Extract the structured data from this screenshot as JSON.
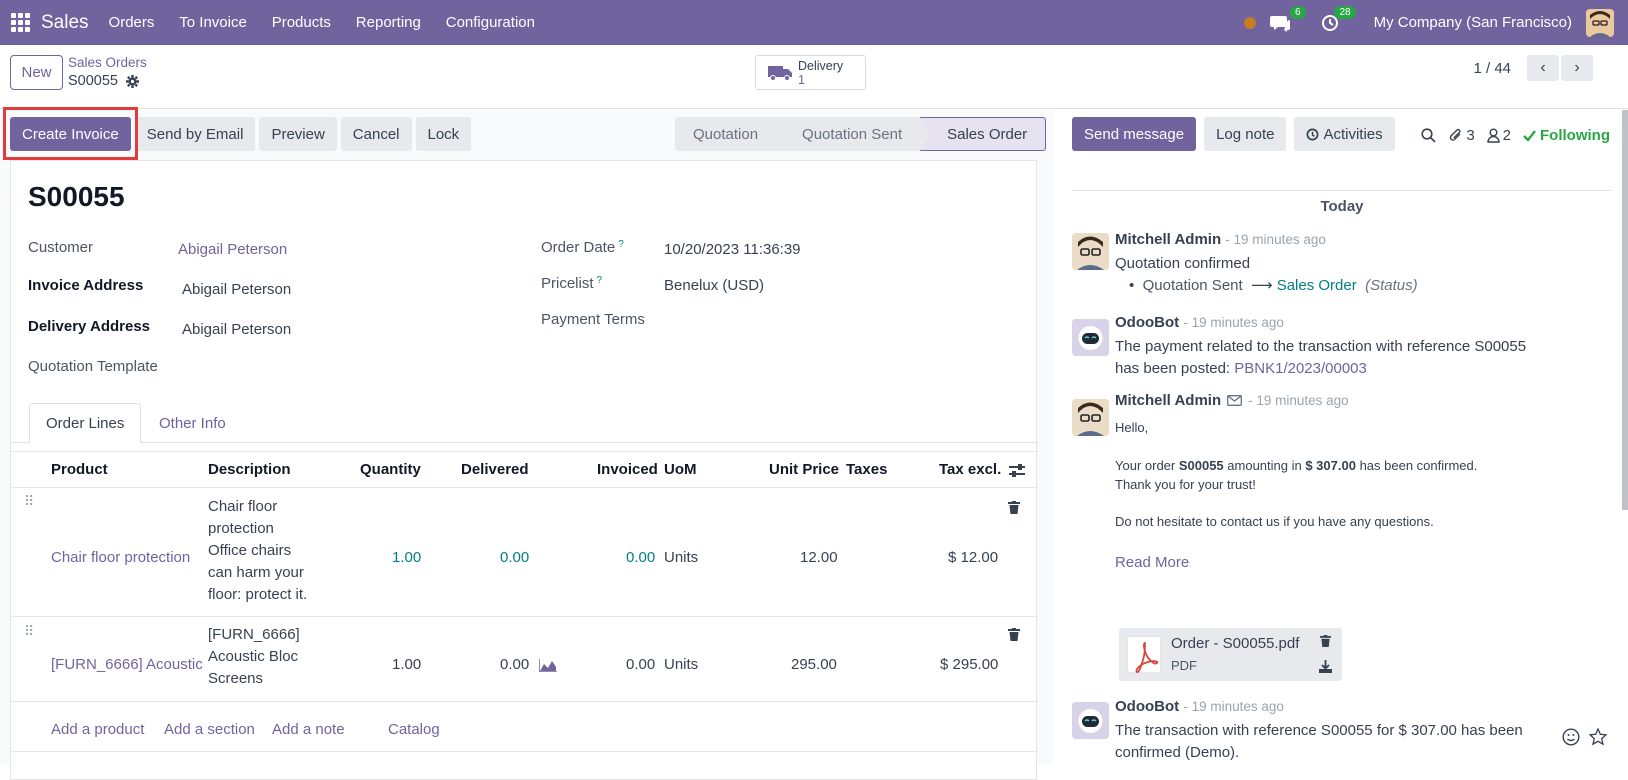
{
  "navbar": {
    "brand": "Sales",
    "menu": [
      "Orders",
      "To Invoice",
      "Products",
      "Reporting",
      "Configuration"
    ],
    "messages_count": "6",
    "activities_count": "28",
    "company": "My Company (San Francisco)"
  },
  "control": {
    "new_label": "New",
    "breadcrumb_parent": "Sales Orders",
    "breadcrumb_current": "S00055",
    "smart_delivery_label": "Delivery",
    "smart_delivery_count": "1",
    "pager": "1 / 44"
  },
  "actions": {
    "create_invoice": "Create Invoice",
    "send_email": "Send by Email",
    "preview": "Preview",
    "cancel": "Cancel",
    "lock": "Lock"
  },
  "status": [
    "Quotation",
    "Quotation Sent",
    "Sales Order"
  ],
  "form": {
    "name": "S00055",
    "customer_label": "Customer",
    "customer": "Abigail Peterson",
    "invoice_address_label": "Invoice Address",
    "invoice_address": "Abigail Peterson",
    "delivery_address_label": "Delivery Address",
    "delivery_address": "Abigail Peterson",
    "quotation_template_label": "Quotation Template",
    "order_date_label": "Order Date",
    "order_date": "10/20/2023 11:36:39",
    "pricelist_label": "Pricelist",
    "pricelist": "Benelux (USD)",
    "payment_terms_label": "Payment Terms",
    "help_mark": "?"
  },
  "tabs": [
    "Order Lines",
    "Other Info"
  ],
  "lines": {
    "headers": [
      "Product",
      "Description",
      "Quantity",
      "Delivered",
      "Invoiced",
      "UoM",
      "Unit Price",
      "Taxes",
      "Tax excl."
    ],
    "rows": [
      {
        "product": "Chair floor protection",
        "description": [
          "Chair floor",
          "protection",
          "Office chairs",
          "can harm your",
          "floor: protect it."
        ],
        "quantity": "1.00",
        "delivered": "0.00",
        "invoiced": "0.00",
        "uom": "Units",
        "unit_price": "12.00",
        "subtotal": "$ 12.00"
      },
      {
        "product": "[FURN_6666] Acoustic",
        "description": [
          "[FURN_6666]",
          "Acoustic Bloc",
          "Screens"
        ],
        "quantity": "1.00",
        "delivered": "0.00",
        "invoiced": "0.00",
        "uom": "Units",
        "unit_price": "295.00",
        "subtotal": "$ 295.00"
      }
    ],
    "add_product": "Add a product",
    "add_section": "Add a section",
    "add_note": "Add a note",
    "catalog": "Catalog"
  },
  "chatter": {
    "send_message": "Send message",
    "log_note": "Log note",
    "activities": "Activities",
    "attachments_count": "3",
    "followers_count": "2",
    "following": "Following",
    "date_divider": "Today",
    "messages": [
      {
        "author": "Mitchell Admin",
        "time": "- 19 minutes ago",
        "text": "Quotation confirmed",
        "tracking_old": "Quotation Sent",
        "tracking_new": "Sales Order",
        "tracking_field": "(Status)"
      },
      {
        "author": "OdooBot",
        "time": "- 19 minutes ago",
        "line1": "The payment related to the transaction with reference S00055",
        "line2_prefix": "has been posted: ",
        "line2_link": "PBNK1/2023/00003"
      },
      {
        "author": "Mitchell Admin",
        "time": "- 19 minutes ago",
        "hello": "Hello,",
        "order_prefix": "Your order ",
        "order_ref": "S00055",
        "order_mid": " amounting in ",
        "order_amount": "$ 307.00",
        "order_suffix": " has been confirmed.",
        "thanks": "Thank you for your trust!",
        "contact": "Do not hesitate to contact us if you have any questions.",
        "read_more": "Read More",
        "attachment_name": "Order - S00055.pdf",
        "attachment_type": "PDF"
      },
      {
        "author": "OdooBot",
        "time": "- 19 minutes ago",
        "line1": "The transaction with reference S00055 for $ 307.00 has been",
        "line2": "confirmed (Demo)."
      }
    ]
  },
  "colors": {
    "brand": "#71639e",
    "link_teal": "#017e84",
    "following": "#28a745",
    "highlight": "#e33b3b"
  }
}
